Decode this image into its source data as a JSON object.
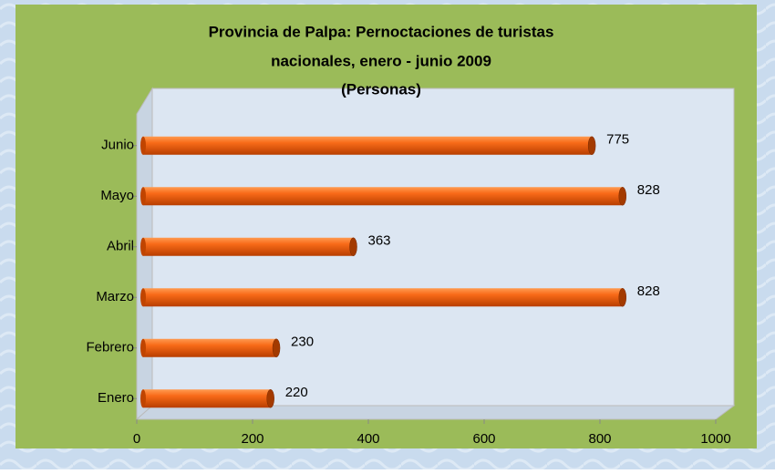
{
  "chart_data": {
    "type": "bar",
    "orientation": "horizontal",
    "title": [
      "Provincia de Palpa: Pernoctaciones de turistas",
      "nacionales, enero - junio 2009",
      "(Personas)"
    ],
    "categories": [
      "Enero",
      "Febrero",
      "Marzo",
      "Abril",
      "Mayo",
      "Junio"
    ],
    "values": [
      220,
      230,
      828,
      363,
      828,
      775
    ],
    "color": "#f06010",
    "xlim": [
      0,
      1000
    ],
    "xticks": [
      0,
      200,
      400,
      600,
      800,
      1000
    ]
  }
}
